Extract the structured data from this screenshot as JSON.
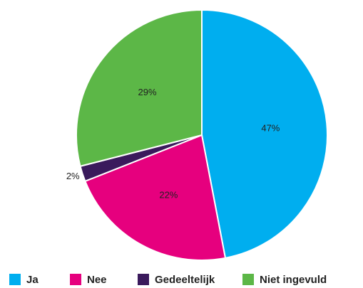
{
  "chart_data": {
    "type": "pie",
    "categories": [
      "Ja",
      "Nee",
      "Gedeeltelijk",
      "Niet ingevuld"
    ],
    "values": [
      47,
      22,
      2,
      29
    ],
    "value_labels": [
      "47%",
      "22%",
      "2%",
      "29%"
    ],
    "colors": [
      "#00aeef",
      "#e6007e",
      "#3a1a5c",
      "#5cb747"
    ],
    "legend": "bottom"
  }
}
